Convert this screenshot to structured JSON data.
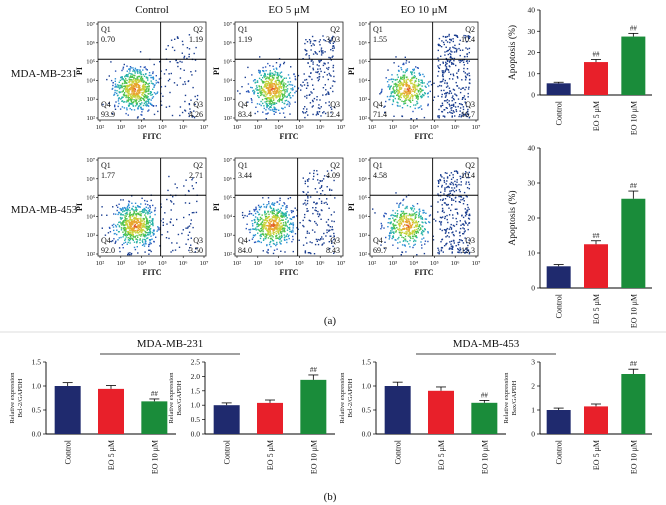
{
  "figure": {
    "panel_a_label": "(a)",
    "panel_b_label": "(b)",
    "colors": {
      "control": "#1f2a6e",
      "eo5": "#e8202a",
      "eo10": "#1a8c3a"
    }
  },
  "flow": {
    "column_titles": [
      "Control",
      "EO 5 μM",
      "EO 10 μM"
    ],
    "row_labels": [
      "MDA-MB-231",
      "MDA-MB-453"
    ],
    "xlabel": "FITC",
    "ylabel": "PI",
    "tick_labels": [
      "10²",
      "10³",
      "10⁴",
      "10⁵",
      "10⁶",
      "10⁷"
    ],
    "y_tick_labels": [
      "10²",
      "10³",
      "10⁴",
      "10⁵",
      "10⁶",
      "10⁷"
    ],
    "quadrant_names": [
      "Q1",
      "Q2",
      "Q3",
      "Q4"
    ],
    "plots": [
      {
        "row": 0,
        "col": 0,
        "q1": "0.70",
        "q2": "1.19",
        "q3": "4.26",
        "q4": "93.9"
      },
      {
        "row": 0,
        "col": 1,
        "q1": "1.19",
        "q2": "3.03",
        "q3": "12.4",
        "q4": "83.4"
      },
      {
        "row": 0,
        "col": 2,
        "q1": "1.55",
        "q2": "10.4",
        "q3": "16.7",
        "q4": "71.4"
      },
      {
        "row": 1,
        "col": 0,
        "q1": "1.77",
        "q2": "2.71",
        "q3": "3.50",
        "q4": "92.0"
      },
      {
        "row": 1,
        "col": 1,
        "q1": "3.44",
        "q2": "4.09",
        "q3": "8.43",
        "q4": "84.0"
      },
      {
        "row": 1,
        "col": 2,
        "q1": "4.58",
        "q2": "10.4",
        "q3": "15.3",
        "q4": "69.7"
      }
    ]
  },
  "chart_data": [
    {
      "id": "apop231",
      "type": "bar",
      "title": "",
      "categories": [
        "Control",
        "EO 5 μM",
        "EO 10 μM"
      ],
      "values": [
        5.5,
        15.5,
        27.5
      ],
      "errors": [
        0.5,
        1.2,
        1.5
      ],
      "sig": [
        "",
        "##",
        "##"
      ],
      "ylabel": "Apoptosis (%)",
      "ylim": [
        0,
        40
      ],
      "yticks": [
        "0",
        "10",
        "20",
        "30",
        "40"
      ]
    },
    {
      "id": "apop453",
      "type": "bar",
      "title": "",
      "categories": [
        "Control",
        "EO 5 μM",
        "EO 10 μM"
      ],
      "values": [
        6.2,
        12.5,
        25.5
      ],
      "errors": [
        0.5,
        1.0,
        2.2
      ],
      "sig": [
        "",
        "##",
        "##"
      ],
      "ylabel": "Apoptosis (%)",
      "ylim": [
        0,
        40
      ],
      "yticks": [
        "0",
        "10",
        "20",
        "30",
        "40"
      ]
    },
    {
      "id": "bcl231",
      "type": "bar",
      "title": "MDA-MB-231",
      "categories": [
        "Control",
        "EO 5 μM",
        "EO 10 μM"
      ],
      "values": [
        1.0,
        0.94,
        0.68
      ],
      "errors": [
        0.07,
        0.07,
        0.05
      ],
      "sig": [
        "",
        "",
        "##"
      ],
      "ylabel": [
        "Relative expression",
        "Bcl-2/GAPDH"
      ],
      "ylim": [
        0,
        1.5
      ],
      "yticks": [
        "0.0",
        "0.5",
        "1.0",
        "1.5"
      ]
    },
    {
      "id": "bax231",
      "type": "bar",
      "title": "",
      "categories": [
        "Control",
        "EO 5 μM",
        "EO 10 μM"
      ],
      "values": [
        1.0,
        1.08,
        1.88
      ],
      "errors": [
        0.08,
        0.1,
        0.17
      ],
      "sig": [
        "",
        "",
        "##"
      ],
      "ylabel": [
        "Relative expression",
        "Bax/GAPDH"
      ],
      "ylim": [
        0,
        2.5
      ],
      "yticks": [
        "0.0",
        "0.5",
        "1.0",
        "1.5",
        "2.0",
        "2.5"
      ]
    },
    {
      "id": "bcl453",
      "type": "bar",
      "title": "MDA-MB-453",
      "categories": [
        "Control",
        "EO 5 μM",
        "EO 10 μM"
      ],
      "values": [
        1.0,
        0.9,
        0.65
      ],
      "errors": [
        0.08,
        0.08,
        0.05
      ],
      "sig": [
        "",
        "",
        "##"
      ],
      "ylabel": [
        "Relative expression",
        "Bcl-2/GAPDH"
      ],
      "ylim": [
        0,
        1.5
      ],
      "yticks": [
        "0.0",
        "0.5",
        "1.0",
        "1.5"
      ]
    },
    {
      "id": "bax453",
      "type": "bar",
      "title": "",
      "categories": [
        "Control",
        "EO 5 μM",
        "EO 10 μM"
      ],
      "values": [
        1.0,
        1.15,
        2.5
      ],
      "errors": [
        0.08,
        0.1,
        0.2
      ],
      "sig": [
        "",
        "",
        "##"
      ],
      "ylabel": [
        "Relative expression",
        "Bax/GAPDH"
      ],
      "ylim": [
        0,
        3
      ],
      "yticks": [
        "0",
        "1",
        "2",
        "3"
      ]
    }
  ]
}
